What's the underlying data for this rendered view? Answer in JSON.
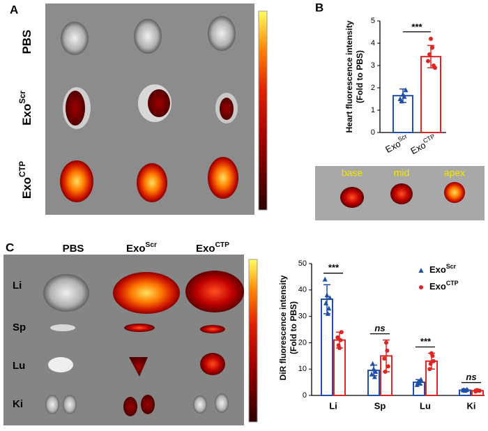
{
  "panel_labels": [
    "A",
    "B",
    "C"
  ],
  "panel_a": {
    "row_labels": [
      {
        "text": "PBS"
      },
      {
        "text": "Exo",
        "sup": "Scr"
      },
      {
        "text": "Exo",
        "sup": "CTP"
      }
    ]
  },
  "heart_sections": [
    "base",
    "mid",
    "apex"
  ],
  "panel_c": {
    "column_labels": [
      {
        "text": "PBS"
      },
      {
        "text": "Exo",
        "sup": "Scr"
      },
      {
        "text": "Exo",
        "sup": "CTP"
      }
    ],
    "row_labels": [
      "Li",
      "Sp",
      "Lu",
      "Ki"
    ]
  },
  "chart_data": [
    {
      "type": "bar",
      "y_label": [
        "Heart fluorescence intensity",
        "(Fold to PBS)"
      ],
      "categories": [
        {
          "text": "Exo",
          "sup": "Scr"
        },
        {
          "text": "Exo",
          "sup": "CTP"
        }
      ],
      "values": [
        1.65,
        3.4
      ],
      "errors": [
        0.3,
        0.5
      ],
      "points": [
        [
          1.5,
          1.7,
          1.9,
          1.4,
          1.6
        ],
        [
          3.2,
          4.2,
          3.0,
          3.5,
          3.8,
          2.9
        ]
      ],
      "colors": [
        "#1f4fa8",
        "#e02424"
      ],
      "markers": [
        "triangle",
        "circle"
      ],
      "ylim": [
        0,
        5
      ],
      "yticks": [
        0,
        1,
        2,
        3,
        4,
        5
      ],
      "significance": "***"
    },
    {
      "type": "grouped_bar",
      "y_label": [
        "DiR fluorescence intensity",
        "(Fold to PBS)"
      ],
      "categories": [
        "Li",
        "Sp",
        "Lu",
        "Ki"
      ],
      "series": [
        {
          "name": {
            "text": "Exo",
            "sup": "Scr"
          },
          "color": "#1f4fa8",
          "marker": "triangle",
          "values": [
            36.5,
            9.5,
            5,
            2
          ],
          "errors": [
            5.5,
            2,
            1,
            0.5
          ],
          "points": [
            [
              44,
              38,
              33,
              35,
              31,
              37
            ],
            [
              8,
              10,
              9,
              12,
              7
            ],
            [
              4,
              5,
              6,
              5,
              4.5
            ],
            [
              2,
              1.8,
              2.2,
              2
            ]
          ]
        },
        {
          "name": {
            "text": "Exo",
            "sup": "CTP"
          },
          "color": "#e02424",
          "marker": "circle",
          "values": [
            21,
            15,
            13,
            1.8
          ],
          "errors": [
            3,
            6,
            3,
            0.5
          ],
          "points": [
            [
              22,
              18,
              24,
              19,
              21
            ],
            [
              14,
              20,
              11,
              9,
              17
            ],
            [
              10,
              16,
              13,
              12,
              15
            ],
            [
              1.5,
              2,
              1.8,
              2
            ]
          ]
        }
      ],
      "significance": [
        "***",
        "ns",
        "***",
        "ns"
      ],
      "ylim": [
        0,
        50
      ],
      "yticks": [
        0,
        10,
        20,
        30,
        40,
        50
      ]
    }
  ]
}
